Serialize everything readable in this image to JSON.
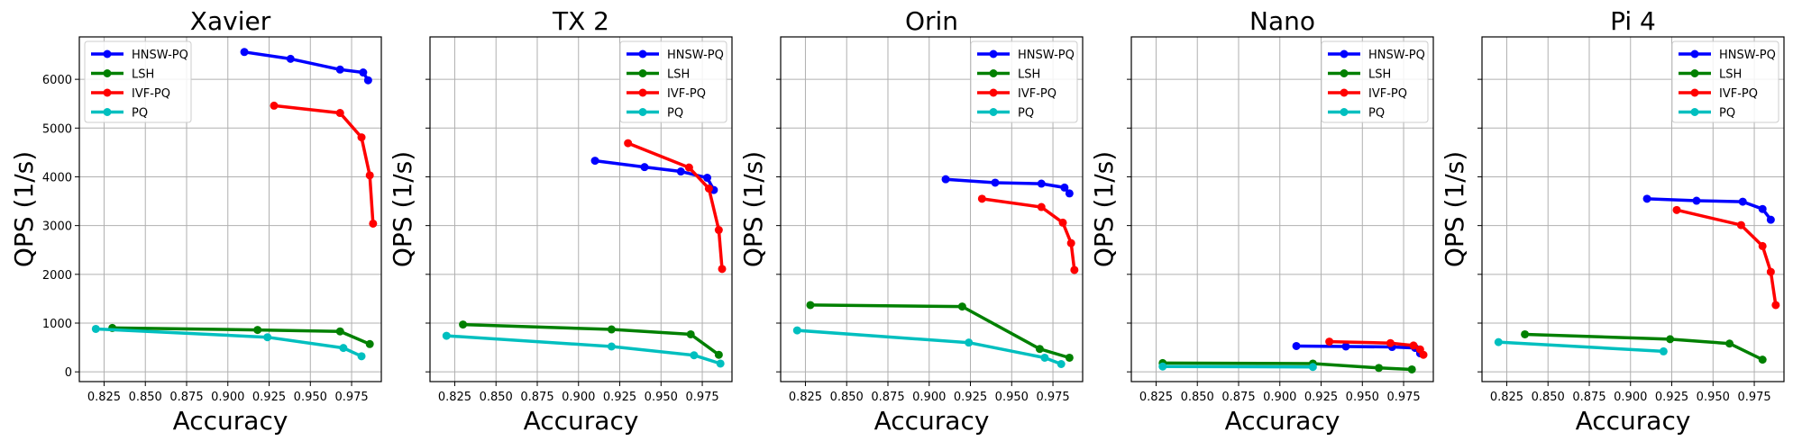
{
  "chart_data": [
    {
      "type": "line",
      "title": "Xavier",
      "xlabel": "Accuracy",
      "ylabel": "QPS (1/s)",
      "xlim": [
        0.81,
        0.993
      ],
      "ylim": [
        -200,
        6870
      ],
      "xticks": [
        "0.825",
        "0.850",
        "0.875",
        "0.900",
        "0.925",
        "0.950",
        "0.975"
      ],
      "yticks": [
        "0",
        "1000",
        "2000",
        "3000",
        "4000",
        "5000",
        "6000"
      ],
      "legend_position": "upper-left",
      "series": [
        {
          "name": "HNSW-PQ",
          "color": "#0000ff",
          "x": [
            0.91,
            0.938,
            0.968,
            0.982,
            0.985
          ],
          "y": [
            6560,
            6420,
            6200,
            6140,
            5980
          ]
        },
        {
          "name": "LSH",
          "color": "#008000",
          "x": [
            0.83,
            0.918,
            0.968,
            0.986
          ],
          "y": [
            900,
            860,
            830,
            570
          ]
        },
        {
          "name": "IVF-PQ",
          "color": "#ff0000",
          "x": [
            0.928,
            0.968,
            0.981,
            0.986,
            0.988
          ],
          "y": [
            5460,
            5310,
            4810,
            4030,
            3040
          ]
        },
        {
          "name": "PQ",
          "color": "#00bfbf",
          "x": [
            0.82,
            0.924,
            0.97,
            0.981
          ],
          "y": [
            880,
            710,
            490,
            320
          ]
        }
      ]
    },
    {
      "type": "line",
      "title": "TX 2",
      "xlabel": "Accuracy",
      "ylabel": "QPS (1/s)",
      "xlim": [
        0.81,
        0.993
      ],
      "ylim": [
        -200,
        6870
      ],
      "xticks": [
        "0.825",
        "0.850",
        "0.875",
        "0.900",
        "0.925",
        "0.950",
        "0.975"
      ],
      "yticks": [],
      "legend_position": "upper-right",
      "series": [
        {
          "name": "HNSW-PQ",
          "color": "#0000ff",
          "x": [
            0.91,
            0.94,
            0.962,
            0.978,
            0.982
          ],
          "y": [
            4330,
            4200,
            4110,
            3980,
            3730
          ]
        },
        {
          "name": "LSH",
          "color": "#008000",
          "x": [
            0.83,
            0.92,
            0.968,
            0.985
          ],
          "y": [
            970,
            870,
            770,
            350
          ]
        },
        {
          "name": "IVF-PQ",
          "color": "#ff0000",
          "x": [
            0.93,
            0.967,
            0.979,
            0.985,
            0.987
          ],
          "y": [
            4690,
            4190,
            3760,
            2910,
            2110
          ]
        },
        {
          "name": "PQ",
          "color": "#00bfbf",
          "x": [
            0.82,
            0.92,
            0.97,
            0.986
          ],
          "y": [
            740,
            520,
            340,
            170
          ]
        }
      ]
    },
    {
      "type": "line",
      "title": "Orin",
      "xlabel": "Accuracy",
      "ylabel": "QPS (1/s)",
      "xlim": [
        0.81,
        0.993
      ],
      "ylim": [
        -200,
        6870
      ],
      "xticks": [
        "0.825",
        "0.850",
        "0.875",
        "0.900",
        "0.925",
        "0.950",
        "0.975"
      ],
      "yticks": [],
      "legend_position": "upper-right",
      "series": [
        {
          "name": "HNSW-PQ",
          "color": "#0000ff",
          "x": [
            0.91,
            0.94,
            0.968,
            0.982,
            0.985
          ],
          "y": [
            3950,
            3880,
            3860,
            3780,
            3660
          ]
        },
        {
          "name": "LSH",
          "color": "#008000",
          "x": [
            0.828,
            0.92,
            0.967,
            0.985
          ],
          "y": [
            1370,
            1340,
            470,
            290
          ]
        },
        {
          "name": "IVF-PQ",
          "color": "#ff0000",
          "x": [
            0.932,
            0.968,
            0.981,
            0.986,
            0.988
          ],
          "y": [
            3550,
            3380,
            3060,
            2640,
            2090
          ]
        },
        {
          "name": "PQ",
          "color": "#00bfbf",
          "x": [
            0.82,
            0.924,
            0.97,
            0.98
          ],
          "y": [
            850,
            600,
            290,
            160
          ]
        }
      ]
    },
    {
      "type": "line",
      "title": "Nano",
      "xlabel": "Accuracy",
      "ylabel": "QPS (1/s)",
      "xlim": [
        0.81,
        0.993
      ],
      "ylim": [
        -200,
        6870
      ],
      "xticks": [
        "0.825",
        "0.850",
        "0.875",
        "0.900",
        "0.925",
        "0.950",
        "0.975"
      ],
      "yticks": [],
      "legend_position": "upper-right",
      "series": [
        {
          "name": "HNSW-PQ",
          "color": "#0000ff",
          "x": [
            0.91,
            0.94,
            0.968,
            0.982,
            0.985
          ],
          "y": [
            530,
            520,
            510,
            490,
            380
          ]
        },
        {
          "name": "LSH",
          "color": "#008000",
          "x": [
            0.829,
            0.92,
            0.96,
            0.98
          ],
          "y": [
            180,
            170,
            80,
            50
          ]
        },
        {
          "name": "IVF-PQ",
          "color": "#ff0000",
          "x": [
            0.93,
            0.967,
            0.981,
            0.985,
            0.987
          ],
          "y": [
            620,
            590,
            540,
            460,
            350
          ]
        },
        {
          "name": "PQ",
          "color": "#00bfbf",
          "x": [
            0.829,
            0.92
          ],
          "y": [
            110,
            100
          ]
        }
      ]
    },
    {
      "type": "line",
      "title": "Pi 4",
      "xlabel": "Accuracy",
      "ylabel": "QPS (1/s)",
      "xlim": [
        0.81,
        0.993
      ],
      "ylim": [
        -200,
        6870
      ],
      "xticks": [
        "0.825",
        "0.850",
        "0.875",
        "0.900",
        "0.925",
        "0.950",
        "0.975"
      ],
      "yticks": [],
      "legend_position": "upper-right",
      "series": [
        {
          "name": "HNSW-PQ",
          "color": "#0000ff",
          "x": [
            0.91,
            0.94,
            0.968,
            0.98,
            0.985
          ],
          "y": [
            3550,
            3510,
            3490,
            3340,
            3120
          ]
        },
        {
          "name": "LSH",
          "color": "#008000",
          "x": [
            0.836,
            0.924,
            0.96,
            0.98
          ],
          "y": [
            770,
            670,
            580,
            250
          ]
        },
        {
          "name": "IVF-PQ",
          "color": "#ff0000",
          "x": [
            0.928,
            0.967,
            0.98,
            0.985,
            0.988
          ],
          "y": [
            3320,
            3010,
            2580,
            2050,
            1370
          ]
        },
        {
          "name": "PQ",
          "color": "#00bfbf",
          "x": [
            0.82,
            0.92
          ],
          "y": [
            610,
            420
          ]
        }
      ]
    }
  ]
}
